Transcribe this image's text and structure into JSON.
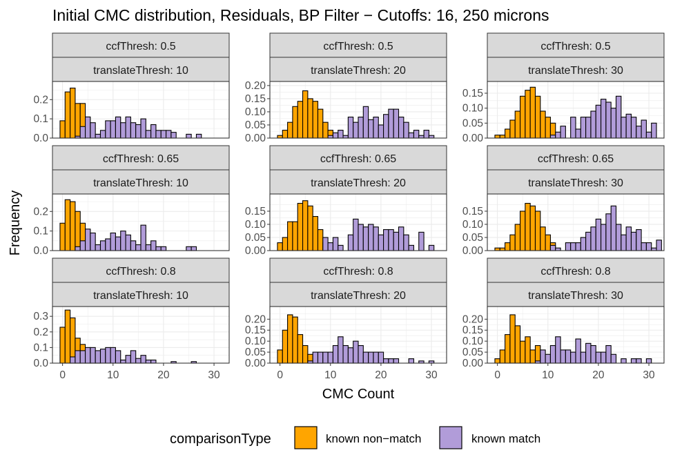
{
  "chart_data": {
    "type": "bar",
    "title": "Initial CMC distribution, Residuals, BP Filter − Cutoffs: 16, 250 microns",
    "xlabel": "CMC Count",
    "ylabel": "Frequency",
    "xlim": [
      -2,
      33
    ],
    "x_ticks": [
      0,
      10,
      20,
      30
    ],
    "legend": {
      "title": "comparisonType",
      "position": "bottom",
      "entries": [
        {
          "label": "known non−match",
          "color": "#FFA500"
        },
        {
          "label": "known match",
          "color": "#B19CD9"
        }
      ]
    },
    "colors": {
      "nonmatch": "#FFA500",
      "match": "#B19CD9",
      "strip": "#D9D9D9",
      "grid": "#EBEBEB"
    },
    "panels": [
      {
        "ccf_label": "ccfThresh: 0.5",
        "trans_label": "translateThresh: 10",
        "ylim": [
          0,
          0.28
        ],
        "y_ticks": [
          "0.0",
          "0.1",
          "0.2"
        ],
        "nonmatch": [
          [
            0,
            0.09
          ],
          [
            1,
            0.24
          ],
          [
            2,
            0.26
          ],
          [
            3,
            0.18
          ],
          [
            4,
            0.18
          ],
          [
            5,
            0.04
          ]
        ],
        "match": [
          [
            3,
            0.01
          ],
          [
            4,
            0.06
          ],
          [
            5,
            0.11
          ],
          [
            6,
            0.08
          ],
          [
            7,
            0.02
          ],
          [
            8,
            0.04
          ],
          [
            9,
            0.09
          ],
          [
            10,
            0.09
          ],
          [
            11,
            0.11
          ],
          [
            12,
            0.08
          ],
          [
            13,
            0.11
          ],
          [
            14,
            0.08
          ],
          [
            15,
            0.07
          ],
          [
            16,
            0.1
          ],
          [
            17,
            0.04
          ],
          [
            18,
            0.07
          ],
          [
            19,
            0.04
          ],
          [
            20,
            0.04
          ],
          [
            21,
            0.04
          ],
          [
            22,
            0.03
          ],
          [
            25,
            0.02
          ],
          [
            27,
            0.02
          ]
        ]
      },
      {
        "ccf_label": "ccfThresh: 0.5",
        "trans_label": "translateThresh: 20",
        "ylim": [
          0,
          0.205
        ],
        "y_ticks": [
          "0.00",
          "0.05",
          "0.10",
          "0.15",
          "0.20"
        ],
        "nonmatch": [
          [
            0,
            0.01
          ],
          [
            1,
            0.03
          ],
          [
            2,
            0.06
          ],
          [
            3,
            0.12
          ],
          [
            4,
            0.14
          ],
          [
            5,
            0.18
          ],
          [
            6,
            0.15
          ],
          [
            7,
            0.14
          ],
          [
            8,
            0.11
          ],
          [
            9,
            0.06
          ],
          [
            10,
            0.03
          ],
          [
            11,
            0.01
          ]
        ],
        "match": [
          [
            10,
            0.01
          ],
          [
            11,
            0.02
          ],
          [
            12,
            0.03
          ],
          [
            13,
            0.01
          ],
          [
            14,
            0.08
          ],
          [
            15,
            0.06
          ],
          [
            16,
            0.08
          ],
          [
            17,
            0.12
          ],
          [
            18,
            0.07
          ],
          [
            19,
            0.08
          ],
          [
            20,
            0.05
          ],
          [
            21,
            0.09
          ],
          [
            22,
            0.11
          ],
          [
            23,
            0.11
          ],
          [
            24,
            0.08
          ],
          [
            25,
            0.06
          ],
          [
            26,
            0.02
          ],
          [
            27,
            0.03
          ],
          [
            28,
            0.01
          ],
          [
            29,
            0.03
          ],
          [
            30,
            0.01
          ]
        ]
      },
      {
        "ccf_label": "ccfThresh: 0.5",
        "trans_label": "translateThresh: 30",
        "ylim": [
          0,
          0.18
        ],
        "y_ticks": [
          "0.00",
          "0.05",
          "0.10",
          "0.15"
        ],
        "nonmatch": [
          [
            0,
            0.01
          ],
          [
            1,
            0.01
          ],
          [
            2,
            0.03
          ],
          [
            3,
            0.06
          ],
          [
            4,
            0.09
          ],
          [
            5,
            0.14
          ],
          [
            6,
            0.16
          ],
          [
            7,
            0.17
          ],
          [
            8,
            0.14
          ],
          [
            9,
            0.09
          ],
          [
            10,
            0.07
          ],
          [
            11,
            0.05
          ]
        ],
        "match": [
          [
            11,
            0.01
          ],
          [
            12,
            0.02
          ],
          [
            13,
            0.04
          ],
          [
            15,
            0.07
          ],
          [
            16,
            0.03
          ],
          [
            17,
            0.07
          ],
          [
            18,
            0.07
          ],
          [
            19,
            0.09
          ],
          [
            20,
            0.11
          ],
          [
            21,
            0.13
          ],
          [
            22,
            0.12
          ],
          [
            23,
            0.1
          ],
          [
            24,
            0.14
          ],
          [
            25,
            0.07
          ],
          [
            26,
            0.08
          ],
          [
            27,
            0.07
          ],
          [
            28,
            0.04
          ],
          [
            29,
            0.06
          ],
          [
            30,
            0.02
          ],
          [
            31,
            0.05
          ]
        ]
      },
      {
        "ccf_label": "ccfThresh: 0.65",
        "trans_label": "translateThresh: 10",
        "ylim": [
          0,
          0.275
        ],
        "y_ticks": [
          "0.0",
          "0.1",
          "0.2"
        ],
        "nonmatch": [
          [
            0,
            0.14
          ],
          [
            1,
            0.26
          ],
          [
            2,
            0.25
          ],
          [
            3,
            0.2
          ],
          [
            4,
            0.14
          ],
          [
            5,
            0.02
          ]
        ],
        "match": [
          [
            3,
            0.02
          ],
          [
            4,
            0.05
          ],
          [
            5,
            0.11
          ],
          [
            6,
            0.09
          ],
          [
            7,
            0.03
          ],
          [
            8,
            0.05
          ],
          [
            9,
            0.06
          ],
          [
            10,
            0.09
          ],
          [
            11,
            0.07
          ],
          [
            12,
            0.1
          ],
          [
            13,
            0.08
          ],
          [
            14,
            0.05
          ],
          [
            15,
            0.03
          ],
          [
            16,
            0.13
          ],
          [
            17,
            0.03
          ],
          [
            18,
            0.05
          ],
          [
            19,
            0.02
          ],
          [
            20,
            0.02
          ],
          [
            25,
            0.02
          ],
          [
            26,
            0.02
          ]
        ]
      },
      {
        "ccf_label": "ccfThresh: 0.65",
        "trans_label": "translateThresh: 20",
        "ylim": [
          0,
          0.205
        ],
        "y_ticks": [
          "0.00",
          "0.05",
          "0.10",
          "0.15"
        ],
        "nonmatch": [
          [
            0,
            0.03
          ],
          [
            1,
            0.05
          ],
          [
            2,
            0.11
          ],
          [
            3,
            0.11
          ],
          [
            4,
            0.18
          ],
          [
            5,
            0.19
          ],
          [
            6,
            0.17
          ],
          [
            7,
            0.13
          ],
          [
            8,
            0.08
          ],
          [
            9,
            0.03
          ]
        ],
        "match": [
          [
            9,
            0.05
          ],
          [
            10,
            0.03
          ],
          [
            11,
            0.05
          ],
          [
            12,
            0.02
          ],
          [
            14,
            0.06
          ],
          [
            15,
            0.12
          ],
          [
            16,
            0.1
          ],
          [
            17,
            0.09
          ],
          [
            18,
            0.1
          ],
          [
            19,
            0.09
          ],
          [
            20,
            0.06
          ],
          [
            21,
            0.08
          ],
          [
            22,
            0.08
          ],
          [
            23,
            0.07
          ],
          [
            24,
            0.09
          ],
          [
            25,
            0.06
          ],
          [
            26,
            0.02
          ],
          [
            28,
            0.07
          ],
          [
            30,
            0.02
          ]
        ]
      },
      {
        "ccf_label": "ccfThresh: 0.65",
        "trans_label": "translateThresh: 30",
        "ylim": [
          0,
          0.205
        ],
        "y_ticks": [
          "0.00",
          "0.05",
          "0.10",
          "0.15"
        ],
        "nonmatch": [
          [
            0,
            0.01
          ],
          [
            1,
            0.01
          ],
          [
            2,
            0.03
          ],
          [
            3,
            0.06
          ],
          [
            4,
            0.1
          ],
          [
            5,
            0.15
          ],
          [
            6,
            0.18
          ],
          [
            7,
            0.17
          ],
          [
            8,
            0.15
          ],
          [
            9,
            0.09
          ],
          [
            10,
            0.06
          ],
          [
            11,
            0.03
          ]
        ],
        "match": [
          [
            11,
            0.02
          ],
          [
            12,
            0.01
          ],
          [
            14,
            0.03
          ],
          [
            15,
            0.03
          ],
          [
            16,
            0.03
          ],
          [
            17,
            0.05
          ],
          [
            18,
            0.07
          ],
          [
            19,
            0.09
          ],
          [
            20,
            0.12
          ],
          [
            21,
            0.1
          ],
          [
            22,
            0.14
          ],
          [
            23,
            0.17
          ],
          [
            24,
            0.1
          ],
          [
            25,
            0.06
          ],
          [
            26,
            0.09
          ],
          [
            27,
            0.07
          ],
          [
            28,
            0.08
          ],
          [
            29,
            0.03
          ],
          [
            30,
            0.03
          ],
          [
            31,
            0.01
          ],
          [
            32,
            0.04
          ]
        ]
      },
      {
        "ccf_label": "ccfThresh: 0.8",
        "trans_label": "translateThresh: 10",
        "ylim": [
          0,
          0.345
        ],
        "y_ticks": [
          "0.0",
          "0.1",
          "0.2",
          "0.3"
        ],
        "nonmatch": [
          [
            0,
            0.23
          ],
          [
            1,
            0.34
          ],
          [
            2,
            0.29
          ],
          [
            3,
            0.16
          ],
          [
            4,
            0.12
          ],
          [
            5,
            0.09
          ],
          [
            6,
            0.05
          ],
          [
            7,
            0.03
          ]
        ],
        "match": [
          [
            2,
            0.04
          ],
          [
            3,
            0.08
          ],
          [
            4,
            0.08
          ],
          [
            5,
            0.1
          ],
          [
            6,
            0.1
          ],
          [
            7,
            0.08
          ],
          [
            8,
            0.09
          ],
          [
            9,
            0.1
          ],
          [
            10,
            0.1
          ],
          [
            11,
            0.08
          ],
          [
            12,
            0.02
          ],
          [
            13,
            0.05
          ],
          [
            14,
            0.08
          ],
          [
            15,
            0.03
          ],
          [
            16,
            0.05
          ],
          [
            17,
            0.02
          ],
          [
            18,
            0.02
          ],
          [
            22,
            0.01
          ],
          [
            26,
            0.01
          ]
        ]
      },
      {
        "ccf_label": "ccfThresh: 0.8",
        "trans_label": "translateThresh: 20",
        "ylim": [
          0,
          0.245
        ],
        "y_ticks": [
          "0.00",
          "0.05",
          "0.10",
          "0.15",
          "0.20"
        ],
        "nonmatch": [
          [
            0,
            0.06
          ],
          [
            1,
            0.15
          ],
          [
            2,
            0.22
          ],
          [
            3,
            0.21
          ],
          [
            4,
            0.13
          ],
          [
            5,
            0.08
          ],
          [
            6,
            0.04
          ],
          [
            7,
            0.04
          ],
          [
            8,
            0.02
          ]
        ],
        "match": [
          [
            6,
            0.01
          ],
          [
            7,
            0.05
          ],
          [
            8,
            0.05
          ],
          [
            9,
            0.05
          ],
          [
            10,
            0.05
          ],
          [
            11,
            0.08
          ],
          [
            12,
            0.12
          ],
          [
            13,
            0.08
          ],
          [
            14,
            0.07
          ],
          [
            15,
            0.1
          ],
          [
            16,
            0.08
          ],
          [
            17,
            0.05
          ],
          [
            18,
            0.05
          ],
          [
            19,
            0.05
          ],
          [
            20,
            0.05
          ],
          [
            21,
            0.02
          ],
          [
            22,
            0.02
          ],
          [
            23,
            0.02
          ],
          [
            26,
            0.02
          ],
          [
            28,
            0.01
          ],
          [
            30,
            0.01
          ]
        ]
      },
      {
        "ccf_label": "ccfThresh: 0.8",
        "trans_label": "translateThresh: 30",
        "ylim": [
          0,
          0.245
        ],
        "y_ticks": [
          "0.00",
          "0.05",
          "0.10",
          "0.15",
          "0.20"
        ],
        "nonmatch": [
          [
            0,
            0.02
          ],
          [
            1,
            0.06
          ],
          [
            2,
            0.13
          ],
          [
            3,
            0.22
          ],
          [
            4,
            0.17
          ],
          [
            5,
            0.1
          ],
          [
            6,
            0.12
          ],
          [
            7,
            0.06
          ],
          [
            8,
            0.08
          ],
          [
            9,
            0.04
          ]
        ],
        "match": [
          [
            8,
            0.01
          ],
          [
            9,
            0.06
          ],
          [
            10,
            0.04
          ],
          [
            11,
            0.08
          ],
          [
            12,
            0.12
          ],
          [
            13,
            0.06
          ],
          [
            14,
            0.06
          ],
          [
            15,
            0.05
          ],
          [
            16,
            0.11
          ],
          [
            17,
            0.05
          ],
          [
            18,
            0.09
          ],
          [
            19,
            0.08
          ],
          [
            20,
            0.05
          ],
          [
            21,
            0.05
          ],
          [
            22,
            0.08
          ],
          [
            23,
            0.04
          ],
          [
            25,
            0.02
          ],
          [
            27,
            0.02
          ],
          [
            28,
            0.02
          ],
          [
            30,
            0.02
          ]
        ]
      }
    ]
  }
}
